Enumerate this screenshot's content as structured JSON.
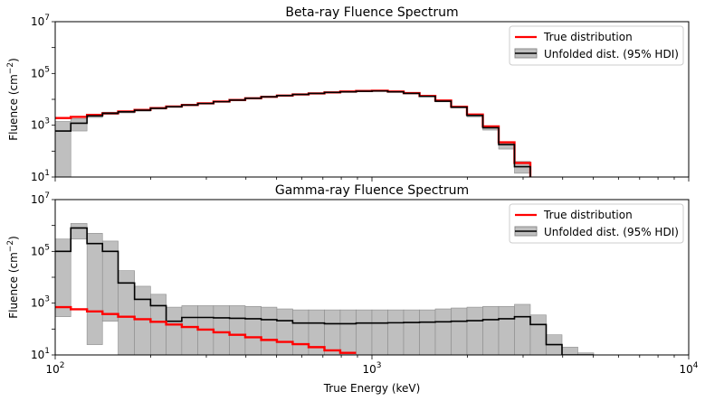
{
  "chart_data": [
    {
      "type": "line",
      "title": "Beta-ray Fluence Spectrum",
      "ylabel": "Fluence (cm",
      "ylabel_sup": "−2",
      "ylabel_close": ")",
      "xscale": "log",
      "yscale": "log",
      "xlim": [
        100,
        10000
      ],
      "ylim": [
        10,
        10000000
      ],
      "ytick_values": [
        10,
        1000,
        100000,
        10000000
      ],
      "ytick_base": "10",
      "ytick_exps": [
        "1",
        "3",
        "5",
        "7"
      ],
      "legend": {
        "position": "upper-right",
        "entries": [
          "True distribution",
          "Unfolded dist. (95% HDI)"
        ]
      },
      "colors": {
        "true": "#ff0000",
        "unfolded": "#000000",
        "band": "#bfbfbf",
        "band_edge": "#8c8c8c"
      },
      "bin_edges": [
        100,
        112,
        126,
        141,
        158,
        178,
        200,
        224,
        251,
        282,
        316,
        355,
        398,
        447,
        501,
        562,
        631,
        708,
        794,
        891,
        1000,
        1122,
        1259,
        1413,
        1585,
        1778,
        1995,
        2239,
        2512,
        2818,
        3162
      ],
      "series": [
        {
          "name": "True distribution",
          "values": [
            1900,
            2100,
            2500,
            2900,
            3400,
            3900,
            4600,
            5300,
            6100,
            7000,
            8200,
            9500,
            11000,
            12500,
            14000,
            15500,
            17000,
            18500,
            20000,
            21000,
            21500,
            20000,
            17500,
            13500,
            9000,
            5200,
            2600,
            900,
            220,
            35
          ]
        },
        {
          "name": "Unfolded dist. (95% HDI)",
          "values": [
            600,
            1200,
            2300,
            2900,
            3300,
            3800,
            4500,
            5200,
            6000,
            6900,
            8100,
            9400,
            11000,
            12500,
            14000,
            15500,
            17000,
            18500,
            19500,
            20500,
            21000,
            19500,
            17000,
            13000,
            8500,
            5000,
            2400,
            800,
            180,
            25
          ]
        }
      ],
      "band_lower": [
        10,
        600,
        2000,
        2600,
        3000,
        3500,
        4200,
        4900,
        5700,
        6600,
        7800,
        9000,
        10500,
        12000,
        13500,
        15000,
        16500,
        18000,
        19000,
        20000,
        20500,
        19000,
        16500,
        12500,
        8000,
        4600,
        2100,
        650,
        120,
        14
      ],
      "band_upper": [
        1400,
        1800,
        2600,
        3200,
        3600,
        4100,
        4800,
        5500,
        6300,
        7200,
        8400,
        9800,
        11500,
        13000,
        14500,
        16000,
        17500,
        19000,
        20500,
        21500,
        22000,
        20500,
        18000,
        14000,
        9500,
        5500,
        2700,
        950,
        230,
        40
      ]
    },
    {
      "type": "line",
      "title": "Gamma-ray Fluence Spectrum",
      "xlabel": "True Energy (keV)",
      "ylabel": "Fluence (cm",
      "ylabel_sup": "−2",
      "ylabel_close": ")",
      "xscale": "log",
      "yscale": "log",
      "xlim": [
        100,
        10000
      ],
      "ylim": [
        10,
        10000000
      ],
      "xtick_values": [
        100,
        1000,
        10000
      ],
      "xtick_base": "10",
      "xtick_exps": [
        "2",
        "3",
        "4"
      ],
      "ytick_values": [
        10,
        1000,
        100000,
        10000000
      ],
      "ytick_base": "10",
      "ytick_exps": [
        "1",
        "3",
        "5",
        "7"
      ],
      "legend": {
        "position": "upper-right",
        "entries": [
          "True distribution",
          "Unfolded dist. (95% HDI)"
        ]
      },
      "colors": {
        "true": "#ff0000",
        "unfolded": "#000000",
        "band": "#bfbfbf",
        "band_edge": "#8c8c8c"
      },
      "bin_edges": [
        100,
        112,
        126,
        141,
        158,
        178,
        200,
        224,
        251,
        282,
        316,
        355,
        398,
        447,
        501,
        562,
        631,
        708,
        794,
        891,
        1000,
        1122,
        1259,
        1413,
        1585,
        1778,
        1995,
        2239,
        2512,
        2818,
        3162,
        3548,
        3981,
        4467,
        5012
      ],
      "true_series": {
        "name": "True distribution",
        "x_end": 891,
        "values": [
          700,
          580,
          480,
          380,
          300,
          240,
          190,
          150,
          120,
          95,
          75,
          60,
          48,
          38,
          32,
          26,
          20,
          15,
          12
        ]
      },
      "series": [
        {
          "name": "Unfolded dist. (95% HDI)",
          "values": [
            100000,
            800000,
            200000,
            100000,
            6000,
            1400,
            800,
            200,
            280,
            280,
            270,
            260,
            250,
            230,
            210,
            170,
            170,
            160,
            160,
            170,
            170,
            175,
            180,
            185,
            190,
            200,
            210,
            230,
            250,
            300,
            150,
            25,
            10,
            10
          ]
        }
      ],
      "band_lower": [
        300,
        300000,
        25,
        200,
        10,
        10,
        10,
        10,
        10,
        10,
        10,
        10,
        10,
        10,
        10,
        10,
        10,
        10,
        10,
        10,
        10,
        10,
        10,
        10,
        10,
        10,
        10,
        10,
        10,
        10,
        10,
        10,
        10,
        10
      ],
      "band_upper": [
        300000,
        1200000,
        500000,
        250000,
        18000,
        4500,
        2200,
        700,
        800,
        800,
        800,
        800,
        750,
        700,
        600,
        550,
        550,
        550,
        550,
        550,
        550,
        550,
        550,
        550,
        600,
        650,
        700,
        750,
        750,
        900,
        350,
        60,
        20,
        12
      ]
    }
  ]
}
